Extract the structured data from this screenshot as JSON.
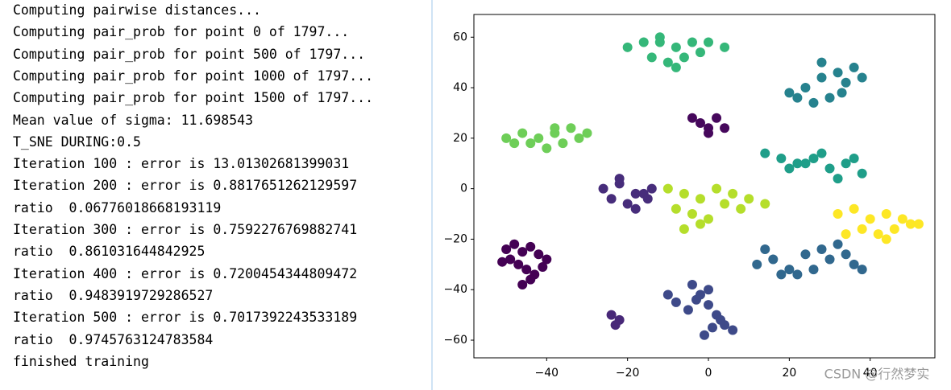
{
  "console": {
    "lines": [
      "Computing pairwise distances...",
      "Computing pair_prob for point 0 of 1797...",
      "Computing pair_prob for point 500 of 1797...",
      "Computing pair_prob for point 1000 of 1797...",
      "Computing pair_prob for point 1500 of 1797...",
      "Mean value of sigma: 11.698543",
      "T_SNE DURING:0.5",
      "Iteration 100 : error is 13.01302681399031",
      "Iteration 200 : error is 0.8817651262129597",
      "ratio  0.06776018668193119",
      "Iteration 300 : error is 0.7592276769882741",
      "ratio  0.861031644842925",
      "Iteration 400 : error is 0.7200454344809472",
      "ratio  0.9483919729286527",
      "Iteration 500 : error is 0.7017392243533189",
      "ratio  0.9745763124783584",
      "finished training"
    ]
  },
  "chart_data": {
    "type": "scatter",
    "xlim": [
      -58,
      56
    ],
    "ylim": [
      -67,
      69
    ],
    "xticks": [
      {
        "value": -40,
        "label": "−40"
      },
      {
        "value": -20,
        "label": "−20"
      },
      0,
      20,
      40
    ],
    "yticks": [
      {
        "value": -60,
        "label": "−60"
      },
      {
        "value": -40,
        "label": "−40"
      },
      {
        "value": -20,
        "label": "−20"
      },
      0,
      20,
      40,
      60
    ],
    "series": [
      {
        "color": "#440154",
        "x": [
          -50,
          -48,
          -46,
          -44,
          -42,
          -40,
          -47,
          -45,
          -43,
          -49,
          -51,
          -44,
          -46,
          -41
        ],
        "y": [
          -24,
          -22,
          -25,
          -23,
          -26,
          -28,
          -30,
          -32,
          -34,
          -28,
          -29,
          -36,
          -38,
          -31
        ]
      },
      {
        "color": "#482878",
        "x": [
          -24,
          -22,
          -23
        ],
        "y": [
          -50,
          -52,
          -54
        ]
      },
      {
        "color": "#3e4a89",
        "x": [
          -4,
          -2,
          0,
          2,
          4,
          6,
          -1,
          1,
          3,
          -5,
          -3,
          -10,
          -8,
          0
        ],
        "y": [
          -38,
          -42,
          -46,
          -50,
          -54,
          -56,
          -58,
          -55,
          -52,
          -48,
          -44,
          -42,
          -45,
          -40
        ]
      },
      {
        "color": "#31688e",
        "x": [
          12,
          16,
          20,
          24,
          28,
          32,
          36,
          22,
          26,
          30,
          18,
          14,
          34,
          38
        ],
        "y": [
          -30,
          -28,
          -32,
          -26,
          -24,
          -22,
          -30,
          -34,
          -32,
          -28,
          -34,
          -24,
          -26,
          -32
        ]
      },
      {
        "color": "#26828e",
        "x": [
          20,
          24,
          28,
          32,
          36,
          30,
          26,
          34,
          22,
          38,
          28,
          33
        ],
        "y": [
          38,
          40,
          44,
          46,
          48,
          36,
          34,
          42,
          36,
          44,
          50,
          38
        ]
      },
      {
        "color": "#1f9e89",
        "x": [
          14,
          18,
          22,
          26,
          30,
          34,
          38,
          20,
          28,
          32,
          36,
          24
        ],
        "y": [
          14,
          12,
          10,
          12,
          8,
          10,
          6,
          8,
          14,
          4,
          12,
          10
        ]
      },
      {
        "color": "#35b779",
        "x": [
          -20,
          -16,
          -12,
          -8,
          -4,
          0,
          4,
          -14,
          -10,
          -6,
          -2,
          -12,
          -8
        ],
        "y": [
          56,
          58,
          60,
          56,
          58,
          58,
          56,
          52,
          50,
          52,
          54,
          58,
          48
        ]
      },
      {
        "color": "#6ece58",
        "x": [
          -50,
          -46,
          -42,
          -38,
          -34,
          -30,
          -44,
          -40,
          -36,
          -32,
          -48,
          -38
        ],
        "y": [
          20,
          22,
          20,
          22,
          24,
          22,
          18,
          16,
          18,
          20,
          18,
          24
        ]
      },
      {
        "color": "#b5de2b",
        "x": [
          -10,
          -6,
          -2,
          2,
          6,
          10,
          14,
          -8,
          -4,
          0,
          4,
          8,
          -6,
          -2
        ],
        "y": [
          0,
          -2,
          -4,
          0,
          -2,
          -4,
          -6,
          -8,
          -10,
          -12,
          -6,
          -8,
          -16,
          -14
        ]
      },
      {
        "color": "#fde725",
        "x": [
          32,
          36,
          40,
          44,
          48,
          52,
          38,
          42,
          46,
          50,
          34,
          44
        ],
        "y": [
          -10,
          -8,
          -12,
          -10,
          -12,
          -14,
          -16,
          -18,
          -16,
          -14,
          -18,
          -20
        ]
      },
      {
        "color": "#472d7b",
        "x": [
          -26,
          -22,
          -18,
          -14,
          -24,
          -20,
          -16,
          -22,
          -18,
          -15
        ],
        "y": [
          0,
          2,
          -2,
          0,
          -4,
          -6,
          -2,
          4,
          -8,
          -4
        ]
      },
      {
        "color": "#46085c",
        "x": [
          -4,
          -2,
          0,
          2,
          4,
          0
        ],
        "y": [
          28,
          26,
          24,
          28,
          24,
          22
        ]
      }
    ]
  },
  "watermark": "CSDN @行然梦实"
}
